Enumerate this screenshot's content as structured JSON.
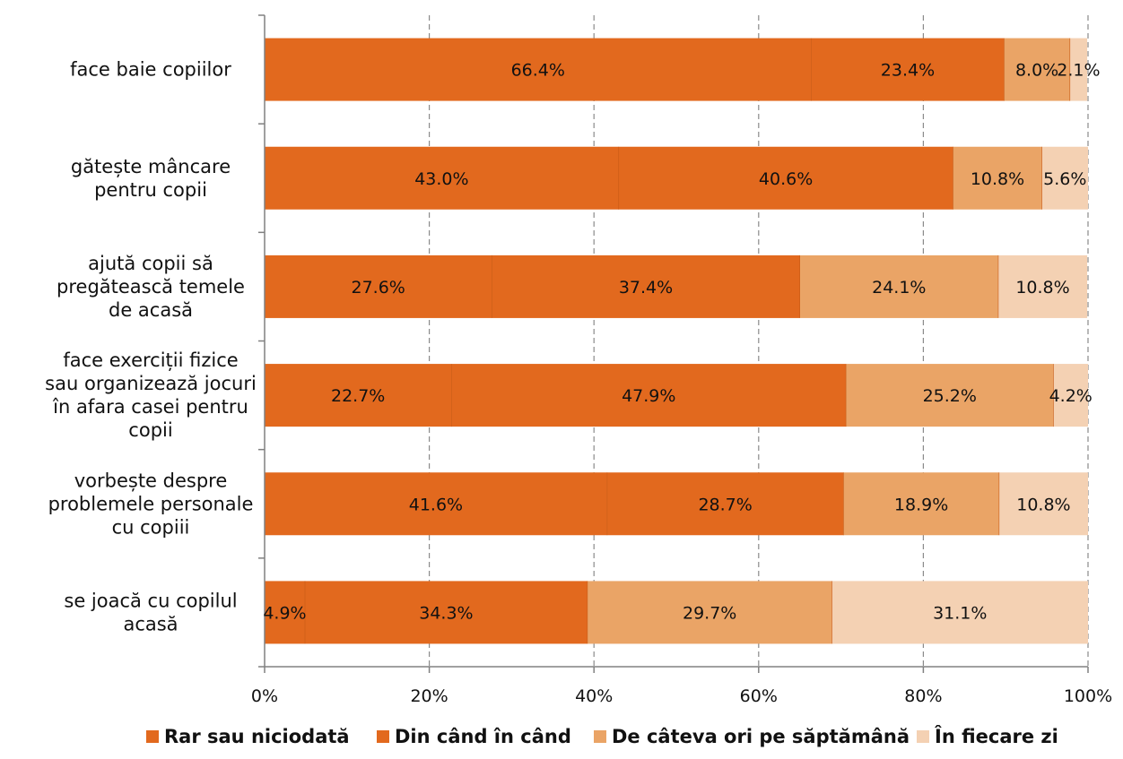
{
  "chart_data": {
    "type": "bar",
    "orientation": "horizontal",
    "stacked": true,
    "categories": [
      [
        "face baie copiilor"
      ],
      [
        "gătește mâncare",
        "pentru copii"
      ],
      [
        "ajută copii să",
        "pregătească temele",
        "de acasă"
      ],
      [
        "face exerciții fizice",
        "sau organizează jocuri",
        "în afara casei pentru",
        "copii"
      ],
      [
        "vorbește despre",
        "problemele personale",
        "cu copiii"
      ],
      [
        "se joacă cu copilul",
        "acasă"
      ]
    ],
    "series": [
      {
        "name": "Rar sau niciodată",
        "color": "#E2691E",
        "values": [
          66.4,
          43.0,
          27.6,
          22.7,
          41.6,
          4.9
        ]
      },
      {
        "name": "Din când în când",
        "color": "#E2691E",
        "values": [
          23.4,
          40.6,
          37.4,
          47.9,
          28.7,
          34.3
        ]
      },
      {
        "name": "De câteva ori pe săptămână",
        "color": "#EAA466",
        "values": [
          8.0,
          10.8,
          24.1,
          25.2,
          18.9,
          29.7
        ]
      },
      {
        "name": "În fiecare zi",
        "color": "#F4D1B3",
        "values": [
          2.1,
          5.6,
          10.8,
          4.2,
          10.8,
          31.1
        ]
      }
    ],
    "value_format": "{v}%",
    "xlim": [
      0,
      100
    ],
    "xticks": [
      0,
      20,
      40,
      60,
      80,
      100
    ],
    "xtick_labels": [
      "0%",
      "20%",
      "40%",
      "60%",
      "80%",
      "100%"
    ],
    "grid": "vertical-dashed",
    "legend": "bottom"
  }
}
